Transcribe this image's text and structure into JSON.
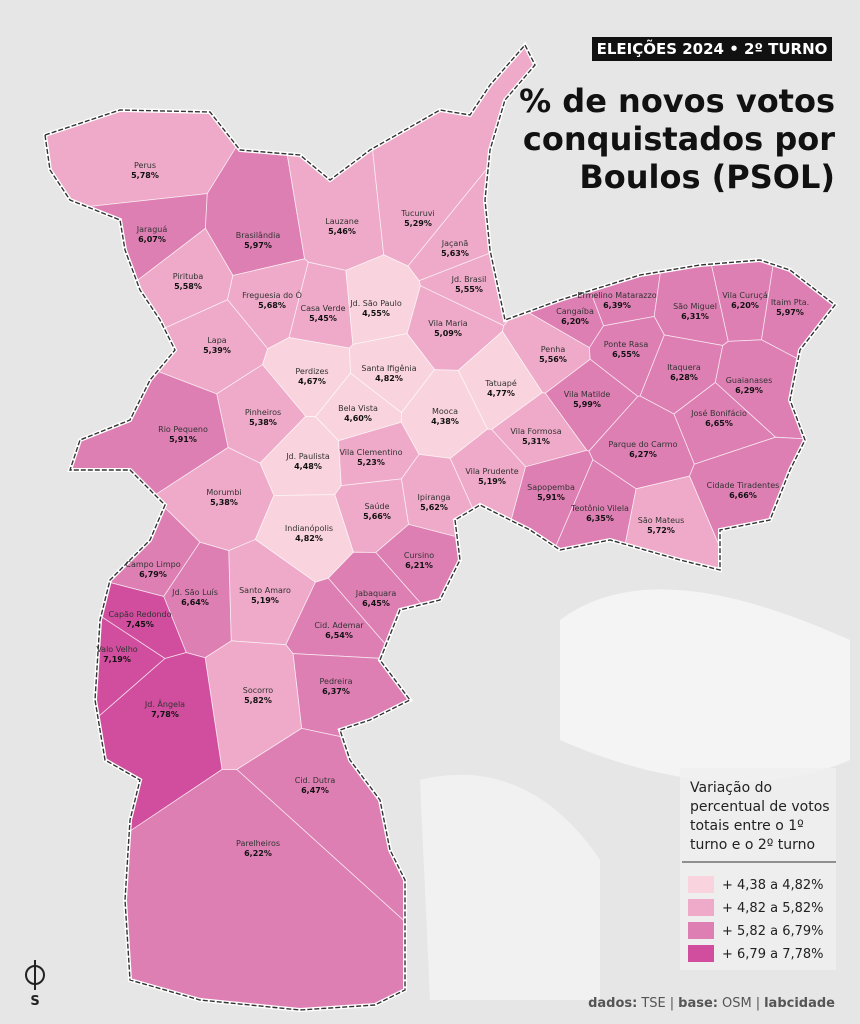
{
  "header": {
    "tag": "ELEIÇÕES 2024 • 2º TURNO",
    "title_lines": [
      "% de novos votos",
      "conquistados por",
      "Boulos (PSOL)"
    ]
  },
  "districts": [
    {
      "name": "Perus",
      "value": 5.78,
      "label": "5,78%"
    },
    {
      "name": "Jaraguá",
      "value": 6.07,
      "label": "6,07%"
    },
    {
      "name": "Brasilândia",
      "value": 5.97,
      "label": "5,97%"
    },
    {
      "name": "Lauzane",
      "value": 5.46,
      "label": "5,46%"
    },
    {
      "name": "Tucuruvi",
      "value": 5.29,
      "label": "5,29%"
    },
    {
      "name": "Jaçanã",
      "value": 5.63,
      "label": "5,63%"
    },
    {
      "name": "Jd. Brasil",
      "value": 5.55,
      "label": "5,55%"
    },
    {
      "name": "Pirituba",
      "value": 5.58,
      "label": "5,58%"
    },
    {
      "name": "Freguesia do Ó",
      "value": 5.68,
      "label": "5,68%"
    },
    {
      "name": "Casa Verde",
      "value": 5.45,
      "label": "5,45%"
    },
    {
      "name": "Jd. São Paulo",
      "value": 4.55,
      "label": "4,55%"
    },
    {
      "name": "Vila Maria",
      "value": 5.09,
      "label": "5,09%"
    },
    {
      "name": "Ermelino Matarazzo",
      "value": 6.39,
      "label": "6,39%"
    },
    {
      "name": "Cangaíba",
      "value": 6.2,
      "label": "6,20%"
    },
    {
      "name": "São Miguel",
      "value": 6.31,
      "label": "6,31%"
    },
    {
      "name": "Vila Curuçá",
      "value": 6.2,
      "label": "6,20%"
    },
    {
      "name": "Itaim Pta.",
      "value": 5.97,
      "label": "5,97%"
    },
    {
      "name": "Lapa",
      "value": 5.39,
      "label": "5,39%"
    },
    {
      "name": "Penha",
      "value": 5.56,
      "label": "5,56%"
    },
    {
      "name": "Ponte Rasa",
      "value": 6.55,
      "label": "6,55%"
    },
    {
      "name": "Perdizes",
      "value": 4.67,
      "label": "4,67%"
    },
    {
      "name": "Santa Ifigênia",
      "value": 4.82,
      "label": "4,82%"
    },
    {
      "name": "Tatuapé",
      "value": 4.77,
      "label": "4,77%"
    },
    {
      "name": "Itaquera",
      "value": 6.28,
      "label": "6,28%"
    },
    {
      "name": "Guaianases",
      "value": 6.29,
      "label": "6,29%"
    },
    {
      "name": "Vila Matilde",
      "value": 5.99,
      "label": "5,99%"
    },
    {
      "name": "Pinheiros",
      "value": 5.38,
      "label": "5,38%"
    },
    {
      "name": "Bela Vista",
      "value": 4.6,
      "label": "4,60%"
    },
    {
      "name": "Mooca",
      "value": 4.38,
      "label": "4,38%"
    },
    {
      "name": "José Bonifácio",
      "value": 6.65,
      "label": "6,65%"
    },
    {
      "name": "Rio Pequeno",
      "value": 5.91,
      "label": "5,91%"
    },
    {
      "name": "Vila Formosa",
      "value": 5.31,
      "label": "5,31%"
    },
    {
      "name": "Parque do Carmo",
      "value": 6.27,
      "label": "6,27%"
    },
    {
      "name": "Jd. Paulista",
      "value": 4.48,
      "label": "4,48%"
    },
    {
      "name": "Vila Clementino",
      "value": 5.23,
      "label": "5,23%"
    },
    {
      "name": "Vila Prudente",
      "value": 5.19,
      "label": "5,19%"
    },
    {
      "name": "Cidade Tiradentes",
      "value": 6.66,
      "label": "6,66%"
    },
    {
      "name": "Morumbi",
      "value": 5.38,
      "label": "5,38%"
    },
    {
      "name": "Sapopemba",
      "value": 5.91,
      "label": "5,91%"
    },
    {
      "name": "Saúde",
      "value": 5.66,
      "label": "5,66%"
    },
    {
      "name": "Ipiranga",
      "value": 5.62,
      "label": "5,62%"
    },
    {
      "name": "Teotônio Vilela",
      "value": 6.35,
      "label": "6,35%"
    },
    {
      "name": "São Mateus",
      "value": 5.72,
      "label": "5,72%"
    },
    {
      "name": "Indianópolis",
      "value": 4.82,
      "label": "4,82%"
    },
    {
      "name": "Cursino",
      "value": 6.21,
      "label": "6,21%"
    },
    {
      "name": "Campo Limpo",
      "value": 6.79,
      "label": "6,79%"
    },
    {
      "name": "Jd. São Luís",
      "value": 6.64,
      "label": "6,64%"
    },
    {
      "name": "Santo Amaro",
      "value": 5.19,
      "label": "5,19%"
    },
    {
      "name": "Jabaquara",
      "value": 6.45,
      "label": "6,45%"
    },
    {
      "name": "Capão Redondo",
      "value": 7.45,
      "label": "7,45%"
    },
    {
      "name": "Cid. Ademar",
      "value": 6.54,
      "label": "6,54%"
    },
    {
      "name": "Valo Velho",
      "value": 7.19,
      "label": "7,19%"
    },
    {
      "name": "Pedreira",
      "value": 6.37,
      "label": "6,37%"
    },
    {
      "name": "Socorro",
      "value": 5.82,
      "label": "5,82%"
    },
    {
      "name": "Jd. Ângela",
      "value": 7.78,
      "label": "7,78%"
    },
    {
      "name": "Cid. Dutra",
      "value": 6.47,
      "label": "6,47%"
    },
    {
      "name": "Parelheiros",
      "value": 6.22,
      "label": "6,22%"
    }
  ],
  "legend": {
    "title_lines": [
      "Variação do",
      "percentual de votos",
      "totais entre o 1º",
      "turno e o 2º turno"
    ],
    "classes": [
      {
        "label": "+ 4,38 a 4,82%",
        "min": 4.38,
        "max": 4.82,
        "color": "#f9d3dd"
      },
      {
        "label": "+ 4,82 a 5,82%",
        "min": 4.82,
        "max": 5.82,
        "color": "#eeaac8"
      },
      {
        "label": "+ 5,82 a 6,79%",
        "min": 5.82,
        "max": 6.79,
        "color": "#de7fb3"
      },
      {
        "label": "+ 6,79 a 7,78%",
        "min": 6.79,
        "max": 7.78,
        "color": "#d04e9d"
      }
    ]
  },
  "footer": {
    "parts": [
      "dados:",
      "TSE",
      "|",
      "base:",
      "OSM",
      "|",
      "labcidade"
    ]
  }
}
